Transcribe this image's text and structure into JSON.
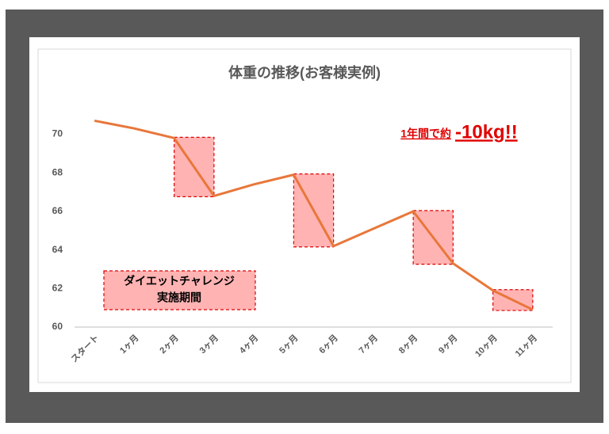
{
  "chart_data": {
    "type": "line",
    "title": "体重の推移(お客様実例)",
    "categories": [
      "スタート",
      "1ヶ月",
      "2ヶ月",
      "3ヶ月",
      "4ヶ月",
      "5ヶ月",
      "6ヶ月",
      "7ヶ月",
      "8ヶ月",
      "9ヶ月",
      "10ヶ月",
      "11ヶ月"
    ],
    "values": [
      70.7,
      70.3,
      69.8,
      66.8,
      67.4,
      67.9,
      64.2,
      65.1,
      66.0,
      63.3,
      61.9,
      60.9
    ],
    "color": "#e8773a",
    "ylim": [
      60,
      70.8
    ],
    "yticks": [
      60,
      62,
      64,
      66,
      68,
      70
    ],
    "grid": false,
    "legend": [
      "ダイエットチャレンジ",
      "実施期間"
    ],
    "annotation": {
      "text": "1年間で約",
      "emphasis": "-10kg!!"
    }
  }
}
